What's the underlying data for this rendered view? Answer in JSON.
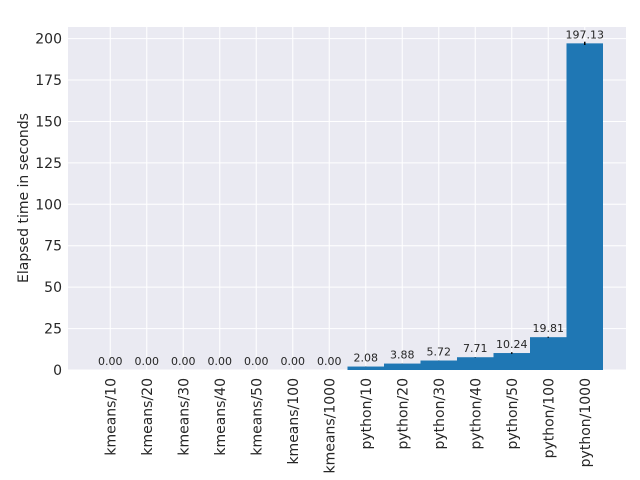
{
  "chart_data": {
    "type": "bar",
    "ylabel": "Elapsed time in seconds",
    "xlabel": "",
    "categories": [
      "kmeans/10",
      "kmeans/20",
      "kmeans/30",
      "kmeans/40",
      "kmeans/50",
      "kmeans/100",
      "kmeans/1000",
      "python/10",
      "python/20",
      "python/30",
      "python/40",
      "python/50",
      "python/100",
      "python/1000"
    ],
    "values": [
      0.0,
      0.0,
      0.0,
      0.0,
      0.0,
      0.0,
      0.0,
      2.08,
      3.88,
      5.72,
      7.71,
      10.24,
      19.81,
      197.13
    ],
    "value_labels": [
      "0.00",
      "0.00",
      "0.00",
      "0.00",
      "0.00",
      "0.00",
      "0.00",
      "2.08",
      "3.88",
      "5.72",
      "7.71",
      "10.24",
      "19.81",
      "197.13"
    ],
    "error": [
      0,
      0,
      0,
      0,
      0,
      0,
      0,
      0.05,
      0.05,
      0.05,
      0.1,
      0.5,
      0.3,
      1.0
    ],
    "yticks": [
      0,
      25,
      50,
      75,
      100,
      125,
      150,
      175,
      200
    ],
    "ytick_labels": [
      "0",
      "25",
      "50",
      "75",
      "100",
      "125",
      "150",
      "175",
      "200"
    ],
    "ylim": [
      0,
      207
    ],
    "grid": true,
    "bar_color": "#1f77b4",
    "background": "#eaeaf2",
    "grid_color": "#ffffff"
  }
}
